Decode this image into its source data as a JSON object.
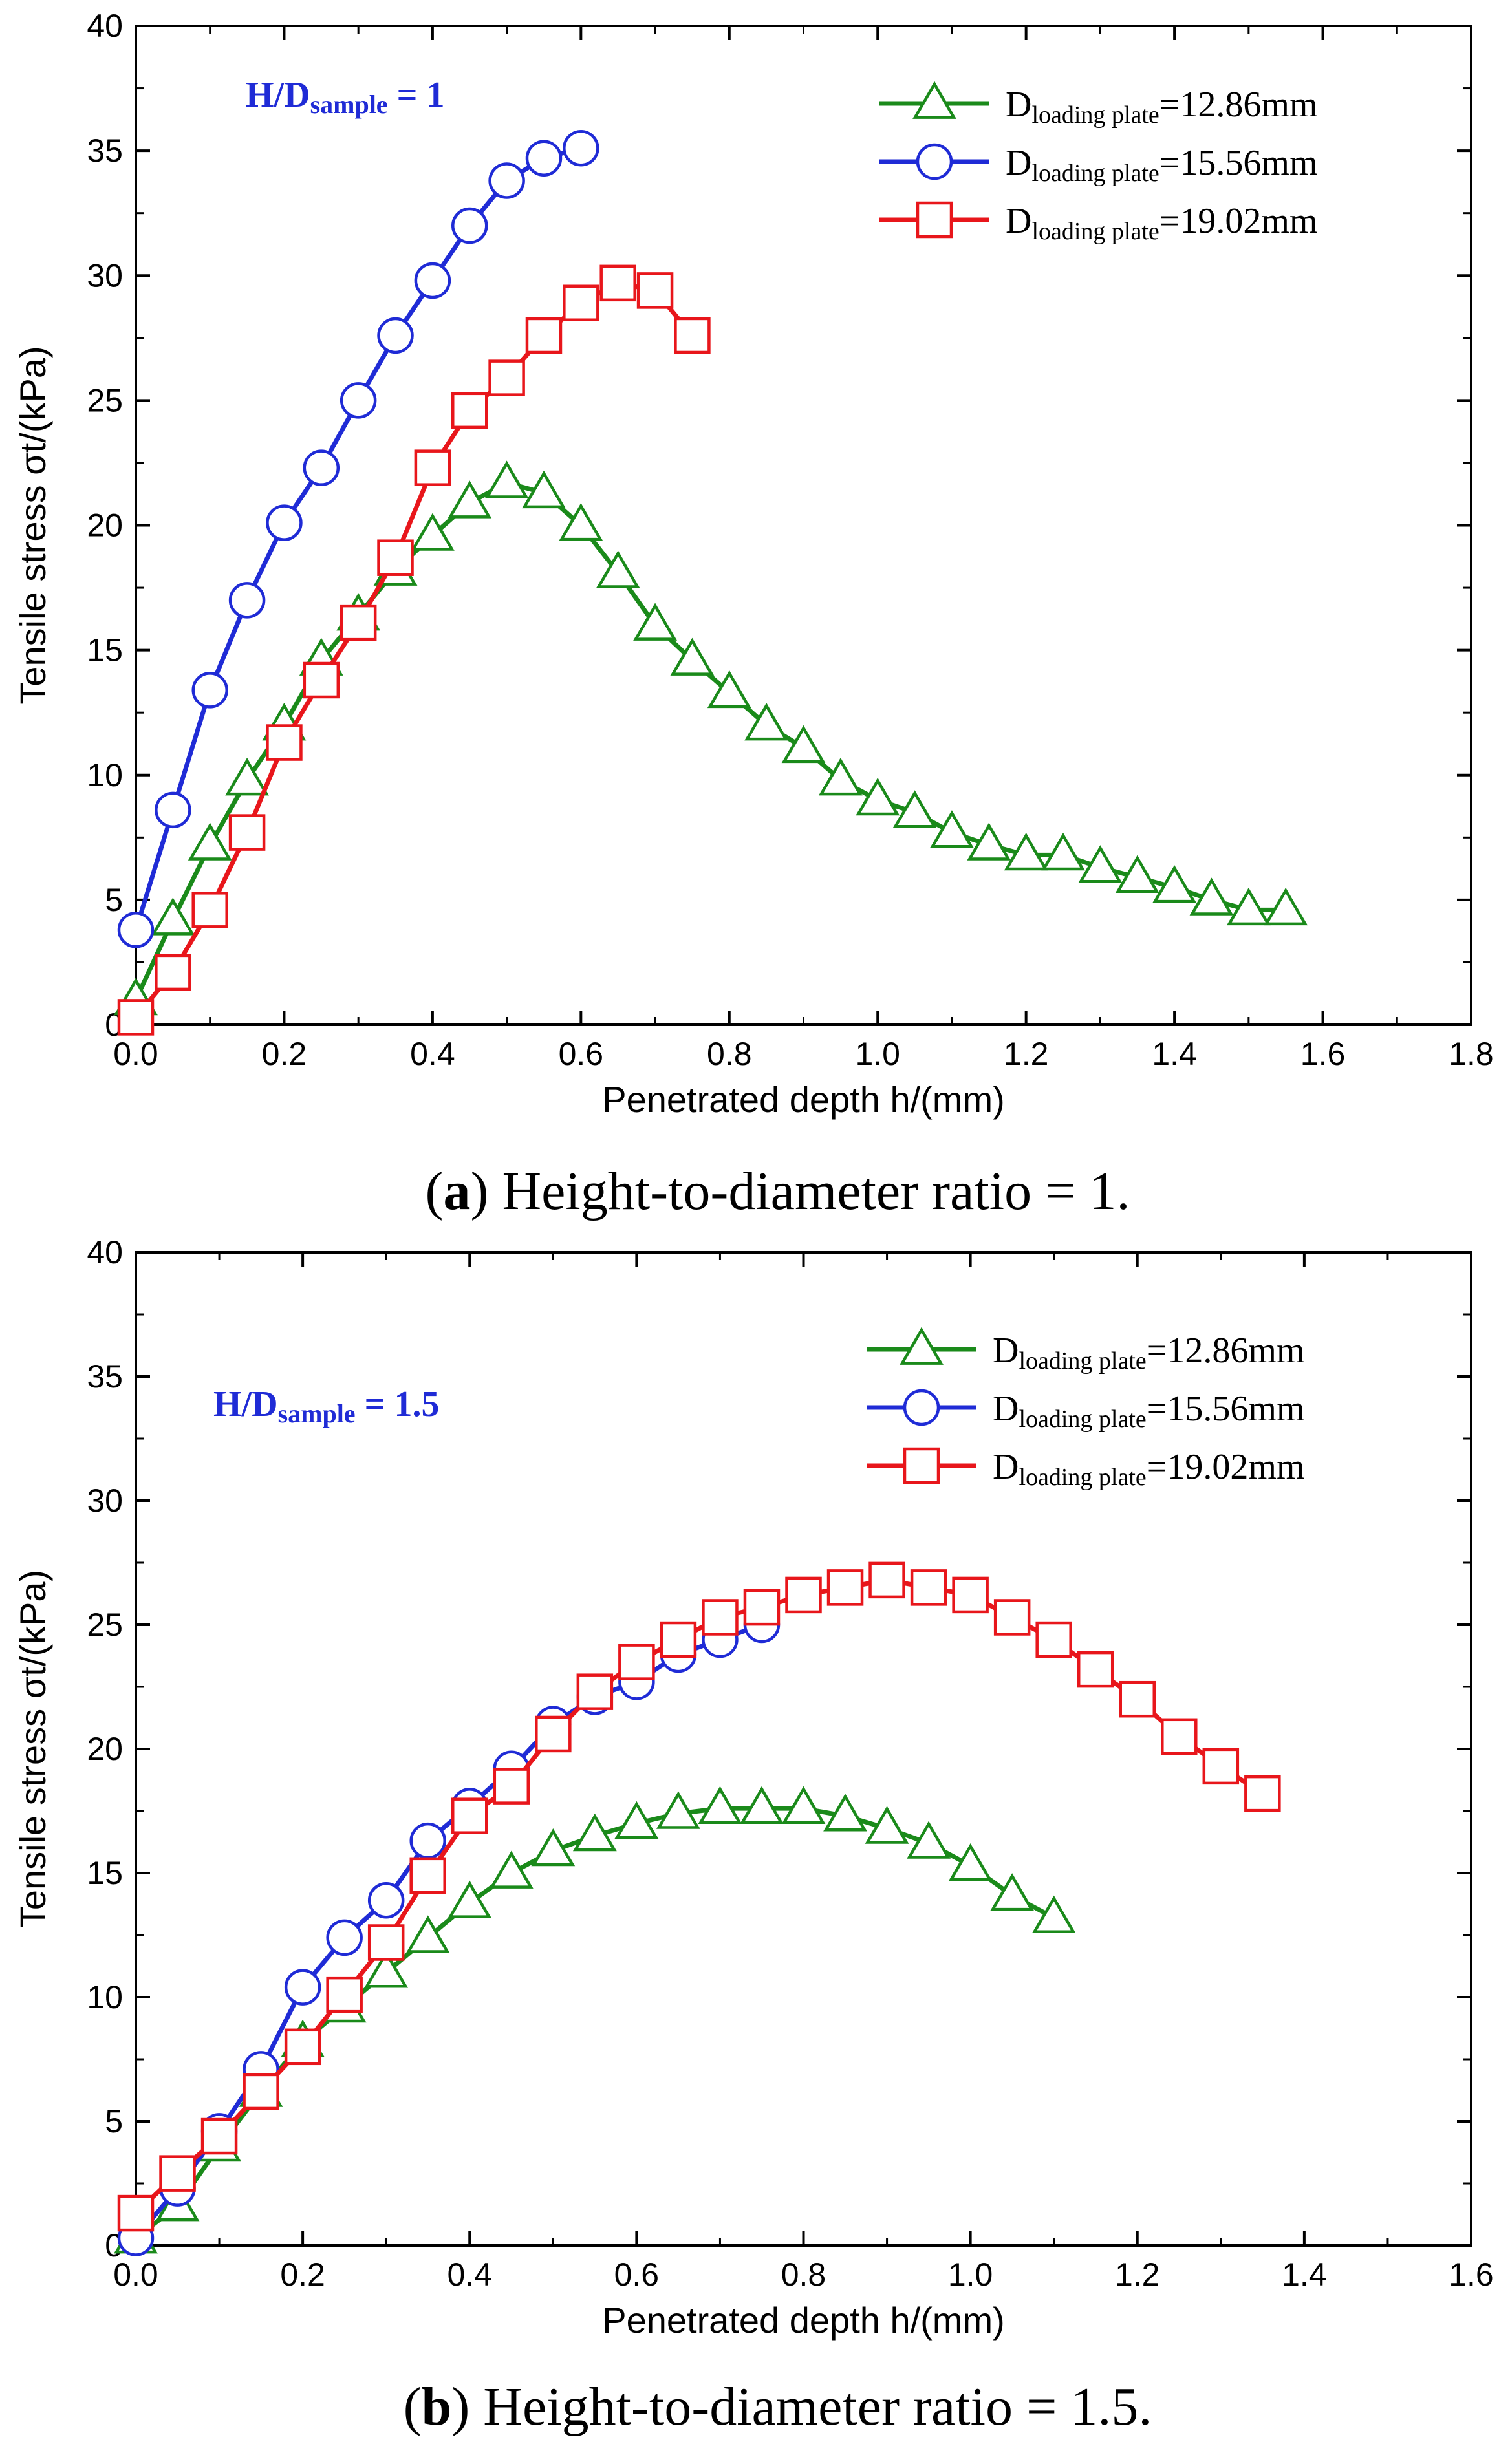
{
  "chart_data": [
    {
      "type": "line",
      "xlabel": "Penetrated depth h/(mm)",
      "ylabel": "Tensile stress σt/(kPa)",
      "xlim": [
        0,
        1.8
      ],
      "ylim": [
        0,
        40
      ],
      "xticks": [
        "0.0",
        "0.2",
        "0.4",
        "0.6",
        "0.8",
        "1.0",
        "1.2",
        "1.4",
        "1.6",
        "1.8"
      ],
      "yticks": [
        "0",
        "5",
        "10",
        "15",
        "20",
        "25",
        "30",
        "35",
        "40"
      ],
      "annotation": {
        "main": "H/D",
        "sub": "sample",
        "tail": " = 1"
      },
      "caption": {
        "letter": "a",
        "text": ") Height-to-diameter ratio = 1.",
        "open": "("
      },
      "legend_position": "top-right",
      "series": [
        {
          "name": "Dloading plate=12.86mm",
          "legend_main": "D",
          "legend_sub": "loading plate",
          "legend_tail": "=12.86mm",
          "color": "#1a8a1a",
          "marker": "triangle",
          "x": [
            0.0,
            0.05,
            0.1,
            0.15,
            0.2,
            0.25,
            0.3,
            0.35,
            0.4,
            0.45,
            0.5,
            0.55,
            0.6,
            0.65,
            0.7,
            0.75,
            0.8,
            0.85,
            0.9,
            0.95,
            1.0,
            1.05,
            1.1,
            1.15,
            1.2,
            1.25,
            1.3,
            1.35,
            1.4,
            1.45,
            1.5,
            1.55
          ],
          "y": [
            1.0,
            4.2,
            7.2,
            9.8,
            12.0,
            14.6,
            16.4,
            18.2,
            19.6,
            20.9,
            21.7,
            21.3,
            20.0,
            18.1,
            16.0,
            14.6,
            13.3,
            12.0,
            11.1,
            9.8,
            9.0,
            8.5,
            7.7,
            7.2,
            6.8,
            6.8,
            6.3,
            5.9,
            5.5,
            5.0,
            4.6,
            4.6
          ]
        },
        {
          "name": "Dloading plate=15.56mm",
          "legend_main": "D",
          "legend_sub": "loading plate",
          "legend_tail": "=15.56mm",
          "color": "#1f2bd6",
          "marker": "circle",
          "x": [
            0.0,
            0.05,
            0.1,
            0.15,
            0.2,
            0.25,
            0.3,
            0.35,
            0.4,
            0.45,
            0.5,
            0.55,
            0.6
          ],
          "y": [
            3.8,
            8.6,
            13.4,
            17.0,
            20.1,
            22.3,
            25.0,
            27.6,
            29.8,
            32.0,
            33.8,
            34.7,
            35.1
          ]
        },
        {
          "name": "Dloading plate=19.02mm",
          "legend_main": "D",
          "legend_sub": "loading plate",
          "legend_tail": "=19.02mm",
          "color": "#e8161b",
          "marker": "square",
          "x": [
            0.0,
            0.05,
            0.1,
            0.15,
            0.2,
            0.25,
            0.3,
            0.35,
            0.4,
            0.45,
            0.5,
            0.55,
            0.6,
            0.65,
            0.7,
            0.75
          ],
          "y": [
            0.3,
            2.1,
            4.6,
            7.7,
            11.3,
            13.8,
            16.1,
            18.7,
            22.3,
            24.6,
            25.9,
            27.6,
            28.9,
            29.7,
            29.4,
            27.6
          ]
        }
      ]
    },
    {
      "type": "line",
      "xlabel": "Penetrated depth h/(mm)",
      "ylabel": "Tensile stress σt/(kPa)",
      "xlim": [
        0,
        1.6
      ],
      "ylim": [
        0,
        40
      ],
      "xticks": [
        "0.0",
        "0.2",
        "0.4",
        "0.6",
        "0.8",
        "1.0",
        "1.2",
        "1.4",
        "1.6"
      ],
      "yticks": [
        "0",
        "5",
        "10",
        "15",
        "20",
        "25",
        "30",
        "35",
        "40"
      ],
      "annotation": {
        "main": "H/D",
        "sub": "sample",
        "tail": " = 1.5"
      },
      "caption": {
        "letter": "b",
        "text": ") Height-to-diameter ratio = 1.5.",
        "open": "("
      },
      "legend_position": "top-right",
      "series": [
        {
          "name": "Dloading plate=12.86mm",
          "legend_main": "D",
          "legend_sub": "loading plate",
          "legend_tail": "=12.86mm",
          "color": "#1a8a1a",
          "marker": "triangle",
          "x": [
            0.0,
            0.05,
            0.1,
            0.15,
            0.2,
            0.25,
            0.3,
            0.35,
            0.4,
            0.45,
            0.5,
            0.55,
            0.6,
            0.65,
            0.7,
            0.75,
            0.8,
            0.85,
            0.9,
            0.95,
            1.0,
            1.05,
            1.1
          ],
          "y": [
            0.3,
            1.6,
            4.0,
            6.2,
            8.2,
            9.6,
            11.0,
            12.4,
            13.8,
            15.0,
            15.9,
            16.5,
            17.0,
            17.4,
            17.6,
            17.6,
            17.6,
            17.3,
            16.8,
            16.2,
            15.3,
            14.1,
            13.2
          ]
        },
        {
          "name": "Dloading plate=15.56mm",
          "legend_main": "D",
          "legend_sub": "loading plate",
          "legend_tail": "=15.56mm",
          "color": "#1f2bd6",
          "marker": "circle",
          "x": [
            0.0,
            0.05,
            0.1,
            0.15,
            0.2,
            0.25,
            0.3,
            0.35,
            0.4,
            0.45,
            0.5,
            0.55,
            0.6,
            0.65,
            0.7,
            0.75
          ],
          "y": [
            0.3,
            2.3,
            4.6,
            7.1,
            10.4,
            12.4,
            13.9,
            16.3,
            17.7,
            19.2,
            21.0,
            22.1,
            22.7,
            23.8,
            24.4,
            25.0
          ]
        },
        {
          "name": "Dloading plate=19.02mm",
          "legend_main": "D",
          "legend_sub": "loading plate",
          "legend_tail": "=19.02mm",
          "color": "#e8161b",
          "marker": "square",
          "x": [
            0.0,
            0.05,
            0.1,
            0.15,
            0.2,
            0.25,
            0.3,
            0.35,
            0.4,
            0.45,
            0.5,
            0.55,
            0.6,
            0.65,
            0.7,
            0.75,
            0.8,
            0.85,
            0.9,
            0.95,
            1.0,
            1.05,
            1.1,
            1.15,
            1.2,
            1.25,
            1.3,
            1.35
          ],
          "y": [
            1.3,
            2.9,
            4.4,
            6.2,
            8.0,
            10.1,
            12.2,
            14.9,
            17.3,
            18.5,
            20.6,
            22.3,
            23.5,
            24.4,
            25.3,
            25.7,
            26.2,
            26.5,
            26.8,
            26.5,
            26.2,
            25.3,
            24.4,
            23.2,
            22.0,
            20.5,
            19.3,
            18.2
          ]
        }
      ]
    }
  ]
}
